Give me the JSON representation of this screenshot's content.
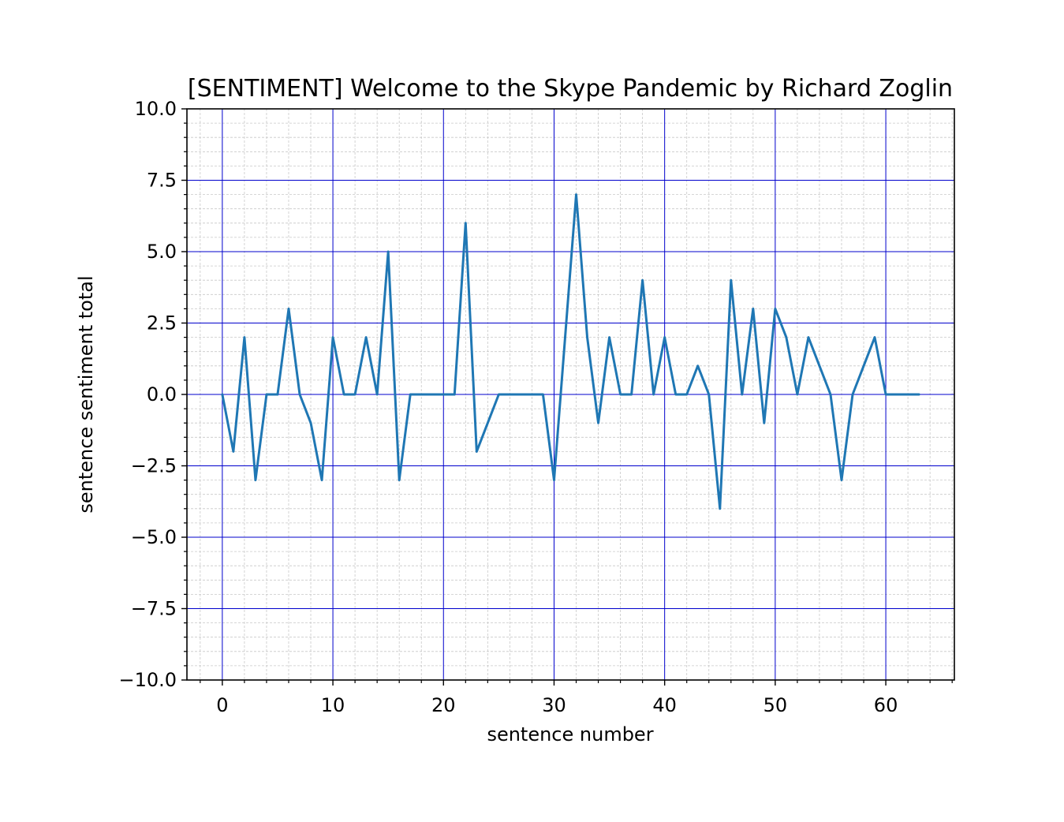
{
  "chart_data": {
    "type": "line",
    "title": "[SENTIMENT] Welcome to the Skype Pandemic by Richard Zoglin",
    "xlabel": "sentence number",
    "ylabel": "sentence sentiment total",
    "xlim": [
      -3.2,
      66.2
    ],
    "ylim": [
      -10,
      10
    ],
    "x_ticks": [
      0,
      10,
      20,
      30,
      40,
      50,
      60
    ],
    "x_tick_labels": [
      "0",
      "10",
      "20",
      "30",
      "40",
      "50",
      "60"
    ],
    "y_ticks": [
      -10,
      -7.5,
      -5,
      -2.5,
      0,
      2.5,
      5,
      7.5,
      10
    ],
    "y_tick_labels": [
      "−10.0",
      "−7.5",
      "−5.0",
      "−2.5",
      "0.0",
      "2.5",
      "5.0",
      "7.5",
      "10.0"
    ],
    "grid": {
      "major": true,
      "minor": true,
      "major_color": "#0000cc",
      "minor_color": "#c8c8c8"
    },
    "series": [
      {
        "color": "#1f77b4",
        "x": [
          0,
          1,
          2,
          3,
          4,
          5,
          6,
          7,
          8,
          9,
          10,
          11,
          12,
          13,
          14,
          15,
          16,
          17,
          18,
          19,
          20,
          21,
          22,
          23,
          24,
          25,
          26,
          27,
          28,
          29,
          30,
          31,
          32,
          33,
          34,
          35,
          36,
          37,
          38,
          39,
          40,
          41,
          42,
          43,
          44,
          45,
          46,
          47,
          48,
          49,
          50,
          51,
          52,
          53,
          54,
          55,
          56,
          57,
          58,
          59,
          60,
          61,
          62,
          63
        ],
        "values": [
          0,
          -2,
          2,
          -3,
          0,
          0,
          3,
          0,
          -1,
          -3,
          2,
          0,
          0,
          2,
          0,
          5,
          -3,
          0,
          0,
          0,
          0,
          0,
          6,
          -2,
          -1,
          0,
          0,
          0,
          0,
          0,
          -3,
          2,
          7,
          2,
          -1,
          2,
          0,
          0,
          4,
          0,
          2,
          0,
          0,
          1,
          0,
          -4,
          4,
          0,
          3,
          -1,
          3,
          2,
          0,
          2,
          1,
          0,
          -3,
          0,
          1,
          2,
          0,
          0,
          0,
          0
        ]
      }
    ]
  }
}
